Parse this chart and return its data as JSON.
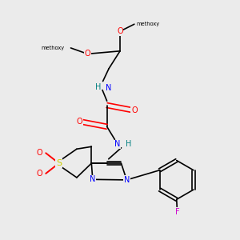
{
  "bg_color": "#ebebeb",
  "colors": {
    "bond": "#000000",
    "N": "#0000ff",
    "O": "#ff0000",
    "S": "#cccc00",
    "F": "#cc00cc",
    "H": "#008080"
  },
  "methyl_top_label": "methoxy",
  "methyl_left_label": "methoxy"
}
